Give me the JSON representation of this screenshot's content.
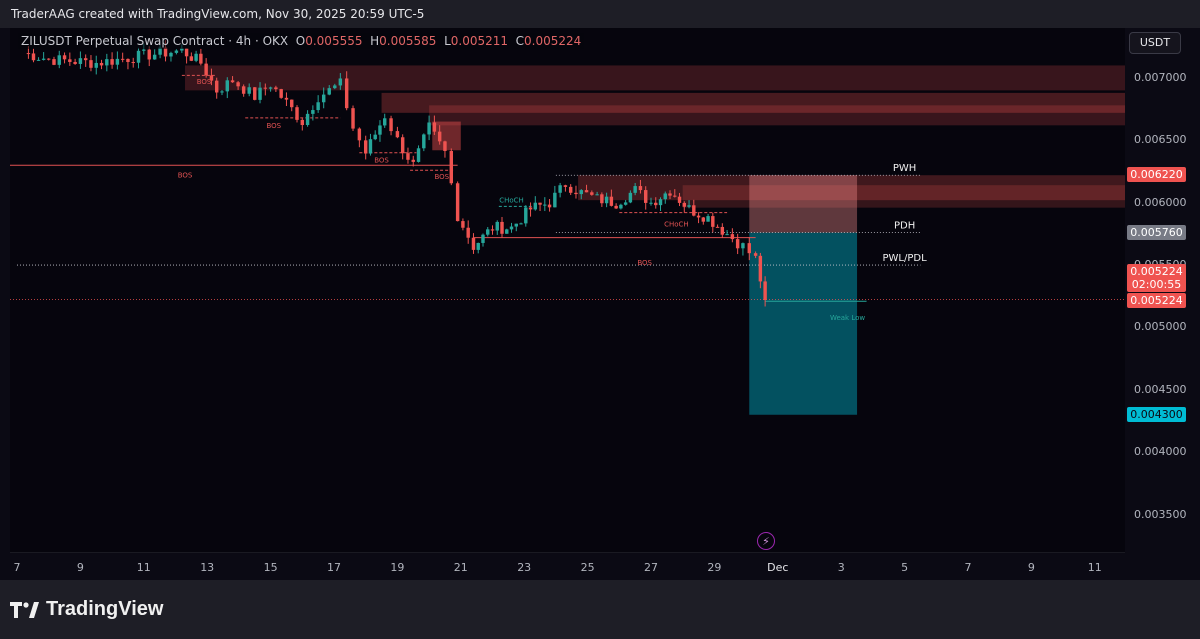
{
  "header": {
    "credit": "TraderAAG created with TradingView.com, Nov 30, 2025 20:59 UTC-5"
  },
  "legend": {
    "symbol": "ZILUSDT Perpetual Swap Contract",
    "interval": "4h",
    "exchange": "OKX",
    "o_label": "O",
    "open": "0.005555",
    "h_label": "H",
    "high": "0.005585",
    "l_label": "L",
    "low": "0.005211",
    "c_label": "C",
    "close": "0.005224"
  },
  "currency_button": "USDT",
  "footer": {
    "brand": "TradingView"
  },
  "colors": {
    "up": "#26a69a",
    "down": "#ef5350",
    "structure": "#e05252",
    "target": "#00bcd4"
  },
  "chart_data": {
    "type": "candlestick",
    "yscale": "linear",
    "ylim": [
      0.0032,
      0.0074
    ],
    "y_ticks": [
      "0.007000",
      "0.006500",
      "0.006000",
      "0.005500",
      "0.005000",
      "0.004500",
      "0.004000",
      "0.003500"
    ],
    "x_ticks": [
      "7",
      "9",
      "11",
      "13",
      "15",
      "17",
      "19",
      "21",
      "23",
      "25",
      "27",
      "29",
      "Dec",
      "3",
      "5",
      "7",
      "9",
      "11"
    ],
    "x_tick_days": [
      7,
      9,
      11,
      13,
      15,
      17,
      19,
      21,
      23,
      25,
      27,
      29,
      31,
      33,
      35,
      37,
      39,
      41
    ],
    "xlim_days": [
      7,
      42
    ],
    "candle_anchors": [
      [
        7.2,
        0.0072
      ],
      [
        8.0,
        0.00715
      ],
      [
        9.5,
        0.00712
      ],
      [
        11.0,
        0.00718
      ],
      [
        12.2,
        0.00722
      ],
      [
        12.8,
        0.00712
      ],
      [
        13.3,
        0.0069
      ],
      [
        13.8,
        0.00698
      ],
      [
        14.5,
        0.00685
      ],
      [
        15.0,
        0.00695
      ],
      [
        15.5,
        0.0068
      ],
      [
        16.0,
        0.00665
      ],
      [
        16.5,
        0.00685
      ],
      [
        17.2,
        0.00695
      ],
      [
        17.6,
        0.0066
      ],
      [
        18.0,
        0.0064
      ],
      [
        18.6,
        0.0067
      ],
      [
        19.0,
        0.0065
      ],
      [
        19.5,
        0.0063
      ],
      [
        20.0,
        0.0066
      ],
      [
        20.5,
        0.0064
      ],
      [
        20.9,
        0.0059
      ],
      [
        21.4,
        0.00565
      ],
      [
        22.0,
        0.0058
      ],
      [
        22.6,
        0.0058
      ],
      [
        23.2,
        0.00595
      ],
      [
        23.8,
        0.006
      ],
      [
        24.3,
        0.00615
      ],
      [
        24.8,
        0.00608
      ],
      [
        25.3,
        0.00603
      ],
      [
        25.9,
        0.006
      ],
      [
        26.5,
        0.0061
      ],
      [
        27.0,
        0.006
      ],
      [
        27.6,
        0.0061
      ],
      [
        28.2,
        0.00595
      ],
      [
        28.8,
        0.00588
      ],
      [
        29.4,
        0.00575
      ],
      [
        29.9,
        0.00565
      ],
      [
        30.3,
        0.00555
      ],
      [
        30.6,
        0.00522
      ]
    ],
    "horizontal_levels": [
      {
        "label": "PWH",
        "value": 0.00622,
        "tag": "0.006220",
        "tag_color": "down"
      },
      {
        "label": "PDH",
        "value": 0.00576,
        "tag": "0.005760",
        "tag_color": "neutral"
      },
      {
        "label": "PWL/PDL",
        "value": 0.0055
      }
    ],
    "structure_labels": [
      "BOS",
      "BOS",
      "BOS",
      "BOS",
      "BOS",
      "BOS",
      "CHoCH",
      "CHoCH",
      "Weak Low"
    ],
    "position": {
      "side": "short",
      "entry": 0.00576,
      "stop": 0.00622,
      "target": 0.0043,
      "start_day": 30.1,
      "end_day": 33.5
    },
    "current_price": {
      "value": "0.005224",
      "countdown": "02:00:55",
      "line_tag": "0.005224"
    },
    "target_tag": "0.004300",
    "badge_glyph": "⚡"
  }
}
